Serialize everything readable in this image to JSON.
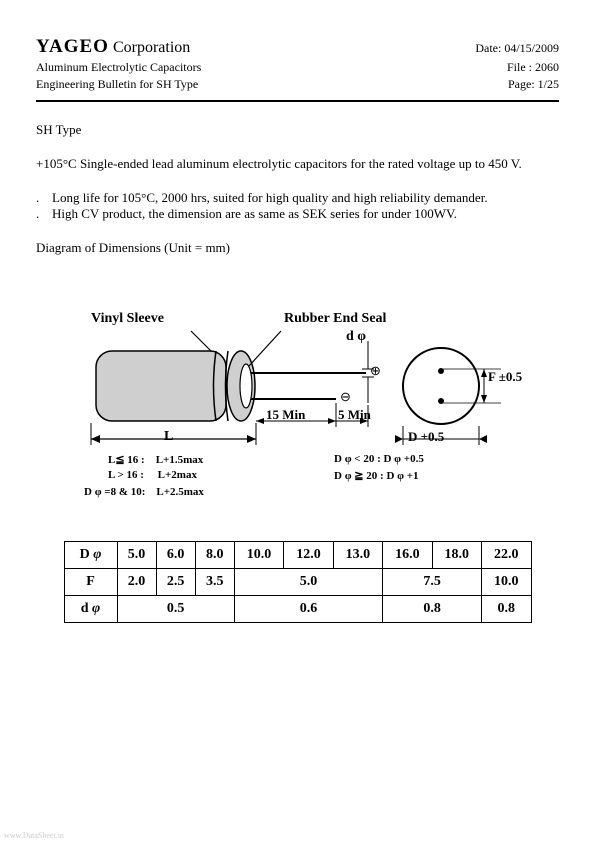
{
  "header": {
    "company_bold": "YAGEO",
    "company_rest": " Corporation",
    "date": "Date: 04/15/2009",
    "line2_left": "Aluminum Electrolytic Capacitors",
    "line2_right": "File : 2060",
    "line3_left": "Engineering Bulletin for SH Type",
    "line3_right": "Page: 1/25"
  },
  "body": {
    "type_title": "SH Type",
    "desc": "+105°C Single-ended lead aluminum electrolytic capacitors for the rated voltage up to 450 V.",
    "bullet1": "Long life for 105°C, 2000 hrs, suited for high quality and high reliability demander.",
    "bullet2": "High CV product, the dimension are as same as SEK series for under 100WV.",
    "diag_title": "Diagram of Dimensions    (Unit = mm)"
  },
  "diagram": {
    "vinyl": "Vinyl  Sleeve",
    "rubber": "Rubber  End  Seal",
    "dphi": "d φ",
    "plus": "⊕",
    "minus": "⊖",
    "fifteen": "15 Min",
    "five": "5 Min",
    "L": "L",
    "F": "F ±0.5",
    "D": "D +0.5",
    "note1a": "L≦ 16 :",
    "note1b": "L+1.5max",
    "note2a": "L > 16 :",
    "note2b": "L+2max",
    "note3a": "D φ =8 & 10:",
    "note3b": "L+2.5max",
    "noteD1": "D φ < 20 : D φ +0.5",
    "noteD2": "D φ ≧ 20 : D φ +1"
  },
  "table": {
    "row_labels": [
      "D  φ",
      "F",
      "d  φ"
    ],
    "Dphi": [
      "5.0",
      "6.0",
      "8.0",
      "10.0",
      "12.0",
      "13.0",
      "16.0",
      "18.0",
      "22.0"
    ],
    "F_cells": [
      {
        "span": 1,
        "val": "2.0"
      },
      {
        "span": 1,
        "val": "2.5"
      },
      {
        "span": 1,
        "val": "3.5"
      },
      {
        "span": 3,
        "val": "5.0"
      },
      {
        "span": 2,
        "val": "7.5"
      },
      {
        "span": 1,
        "val": "10.0"
      }
    ],
    "dphi_cells": [
      {
        "span": 3,
        "val": "0.5"
      },
      {
        "span": 3,
        "val": "0.6"
      },
      {
        "span": 2,
        "val": "0.8"
      },
      {
        "span": 1,
        "val": "0.8"
      }
    ]
  },
  "colors": {
    "cap_fill": "#cfcfcf",
    "cap_stroke": "#000000",
    "bg": "#ffffff"
  },
  "footer": "www.DataSheet.in"
}
